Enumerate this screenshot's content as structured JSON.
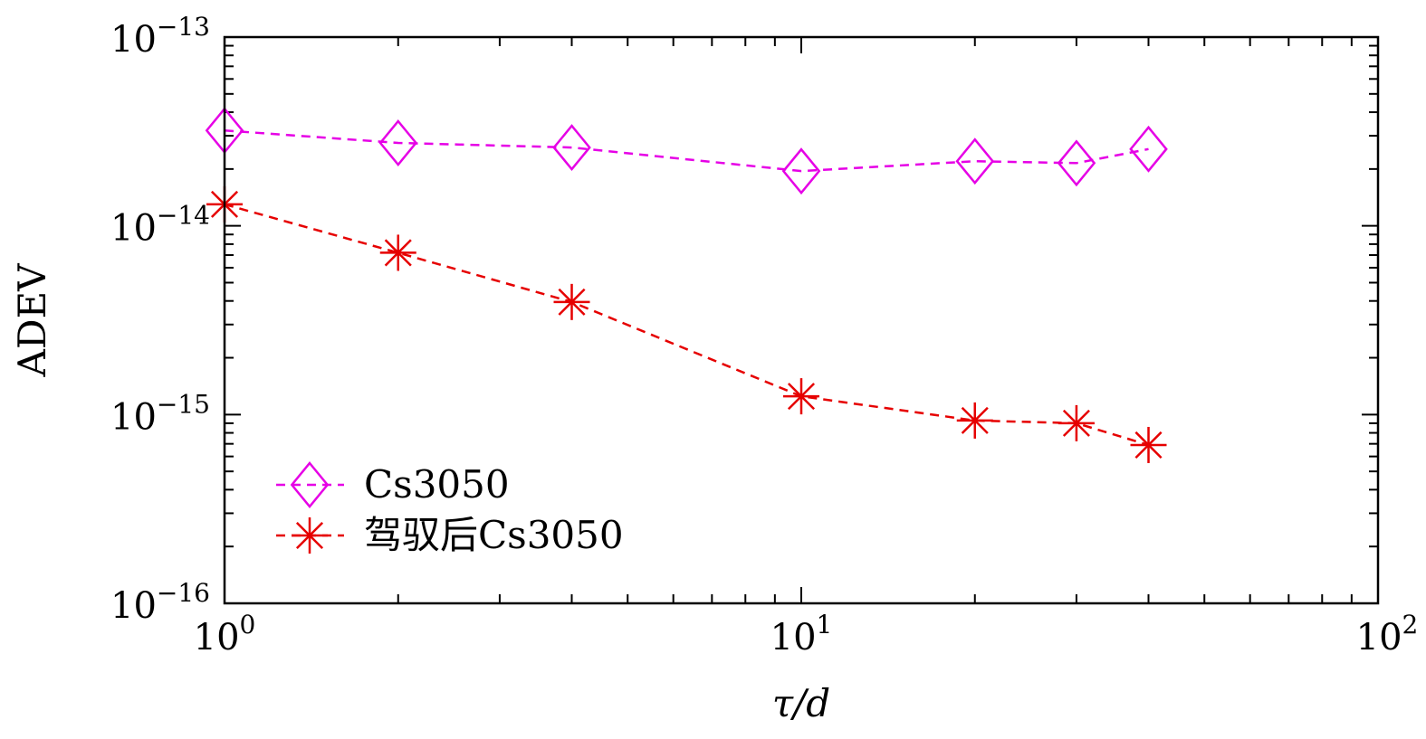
{
  "chart_data": {
    "type": "line",
    "x_scale": "log",
    "y_scale": "log",
    "xlabel": "τ/d",
    "ylabel": "ADEV",
    "xlim": [
      1,
      100
    ],
    "ylim": [
      1e-16,
      1e-13
    ],
    "grid": false,
    "legend_position": "bottom-left",
    "x_ticks": [
      {
        "value": 1,
        "base": "10",
        "exp": "0"
      },
      {
        "value": 10,
        "base": "10",
        "exp": "1"
      },
      {
        "value": 100,
        "base": "10",
        "exp": "2"
      }
    ],
    "y_ticks": [
      {
        "value": 1e-13,
        "base": "10",
        "exp": "−13"
      },
      {
        "value": 1e-14,
        "base": "10",
        "exp": "−14"
      },
      {
        "value": 1e-15,
        "base": "10",
        "exp": "−15"
      },
      {
        "value": 1e-16,
        "base": "10",
        "exp": "−16"
      }
    ],
    "series": [
      {
        "name": "Cs3050",
        "color": "#e600e6",
        "marker": "diamond",
        "line": "dashed",
        "x": [
          1,
          2,
          4,
          10,
          20,
          30,
          40
        ],
        "y": [
          3.2e-14,
          2.75e-14,
          2.6e-14,
          1.95e-14,
          2.2e-14,
          2.15e-14,
          2.55e-14
        ]
      },
      {
        "name": "驾驭后Cs3050",
        "color": "#e60000",
        "marker": "asterisk",
        "line": "dashed",
        "x": [
          1,
          2,
          4,
          10,
          20,
          30,
          40
        ],
        "y": [
          1.3e-14,
          7.2e-15,
          3.95e-15,
          1.25e-15,
          9.3e-16,
          9e-16,
          6.9e-16
        ]
      }
    ]
  }
}
